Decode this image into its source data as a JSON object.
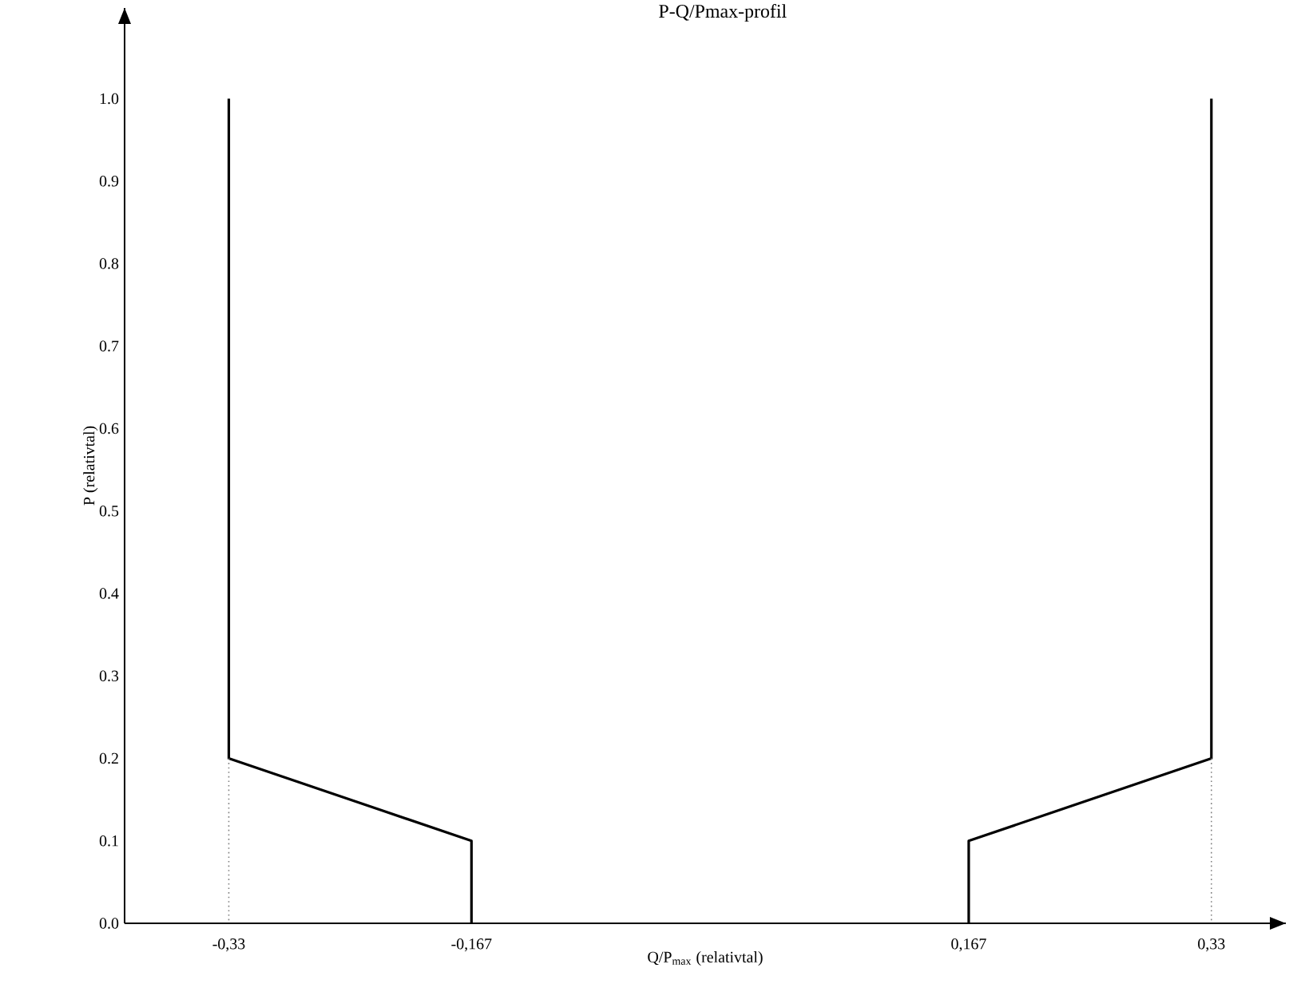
{
  "chart_data": {
    "type": "line",
    "title": "P-Q/Pmax-profil",
    "xlabel": "Q/P$_{max}$ (relativtal)",
    "ylabel": "P (relativtal)",
    "xlim": [
      -0.4,
      0.38
    ],
    "ylim": [
      0,
      1.11
    ],
    "xticks": [
      {
        "value": -0.33,
        "label": "-0,33"
      },
      {
        "value": -0.167,
        "label": "-0,167"
      },
      {
        "value": 0.167,
        "label": "0,167"
      },
      {
        "value": 0.33,
        "label": "0,33"
      }
    ],
    "yticks": [
      {
        "value": 0,
        "label": "0.0"
      },
      0.1,
      0.2,
      0.3,
      0.4,
      0.5,
      0.6,
      0.7,
      0.8,
      0.9,
      {
        "value": 1.0,
        "label": "1.0"
      }
    ],
    "grid": false,
    "marker": "none",
    "series": [
      {
        "color": "#000000",
        "line_style": "solid",
        "x": [
          -0.33,
          -0.33,
          -0.167,
          -0.167
        ],
        "values": [
          1.0,
          0.2,
          0.1,
          0
        ]
      },
      {
        "color": "#000000",
        "line_style": "solid",
        "x": [
          0.167,
          0.167,
          0.33,
          0.33
        ],
        "values": [
          0,
          0.1,
          0.2,
          1.0
        ]
      },
      {
        "color": "#808080",
        "line_style": "dotted",
        "x": [
          -0.33,
          -0.33
        ],
        "values": [
          0.2,
          0
        ]
      },
      {
        "color": "#808080",
        "line_style": "dotted",
        "x": [
          0.33,
          0.33
        ],
        "values": [
          0.2,
          0
        ]
      }
    ]
  }
}
